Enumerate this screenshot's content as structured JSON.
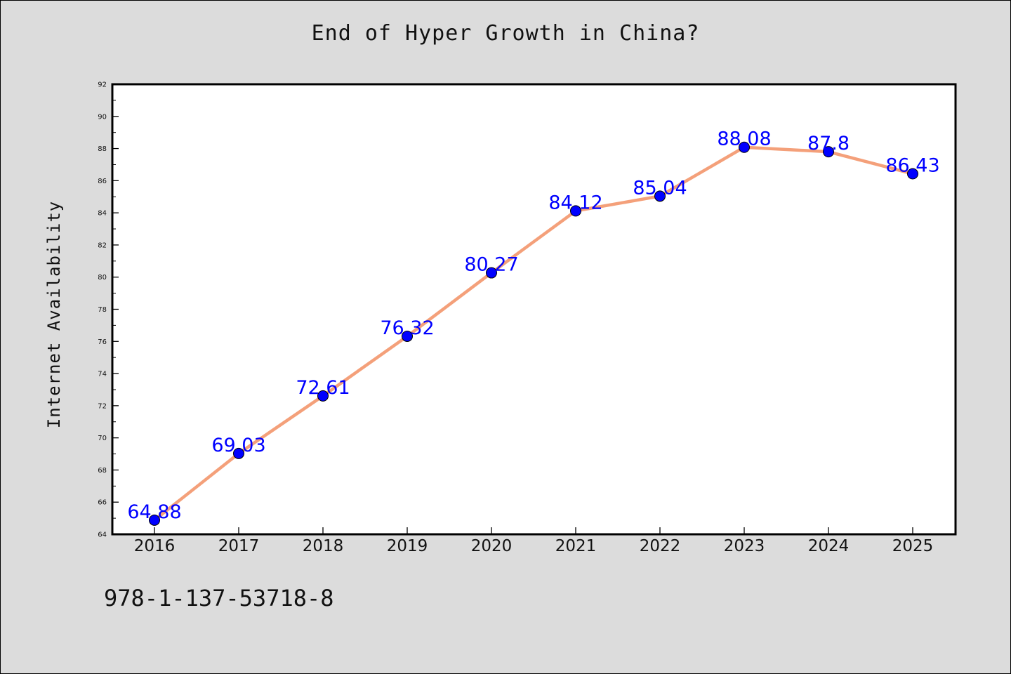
{
  "chart_data": {
    "type": "line",
    "title": "End of Hyper Growth in China?",
    "xlabel": "",
    "ylabel": "Internet Availability",
    "categories": [
      "2016",
      "2017",
      "2018",
      "2019",
      "2020",
      "2021",
      "2022",
      "2023",
      "2024",
      "2025"
    ],
    "series": [
      {
        "values": [
          64.88,
          69.03,
          72.61,
          76.32,
          80.27,
          84.12,
          85.04,
          88.08,
          87.8,
          86.43
        ],
        "labels": [
          "64.88",
          "69.03",
          "72.61",
          "76.32",
          "80.27",
          "84.12",
          "85.04",
          "88.08",
          "87.8",
          "86.43"
        ],
        "line_color": "#f4a07a",
        "marker_color": "#0000ff"
      }
    ],
    "ylim": [
      64,
      92
    ],
    "yticks": [
      "64",
      "66",
      "68",
      "70",
      "72",
      "74",
      "76",
      "78",
      "80",
      "82",
      "84",
      "86",
      "88",
      "90",
      "92"
    ],
    "grid": false,
    "legend": "none"
  },
  "footer": {
    "code": "978-1-137-53718-8"
  },
  "colors": {
    "background": "#dcdcdc",
    "plot_background": "#ffffff",
    "label_color": "#0000ff"
  }
}
